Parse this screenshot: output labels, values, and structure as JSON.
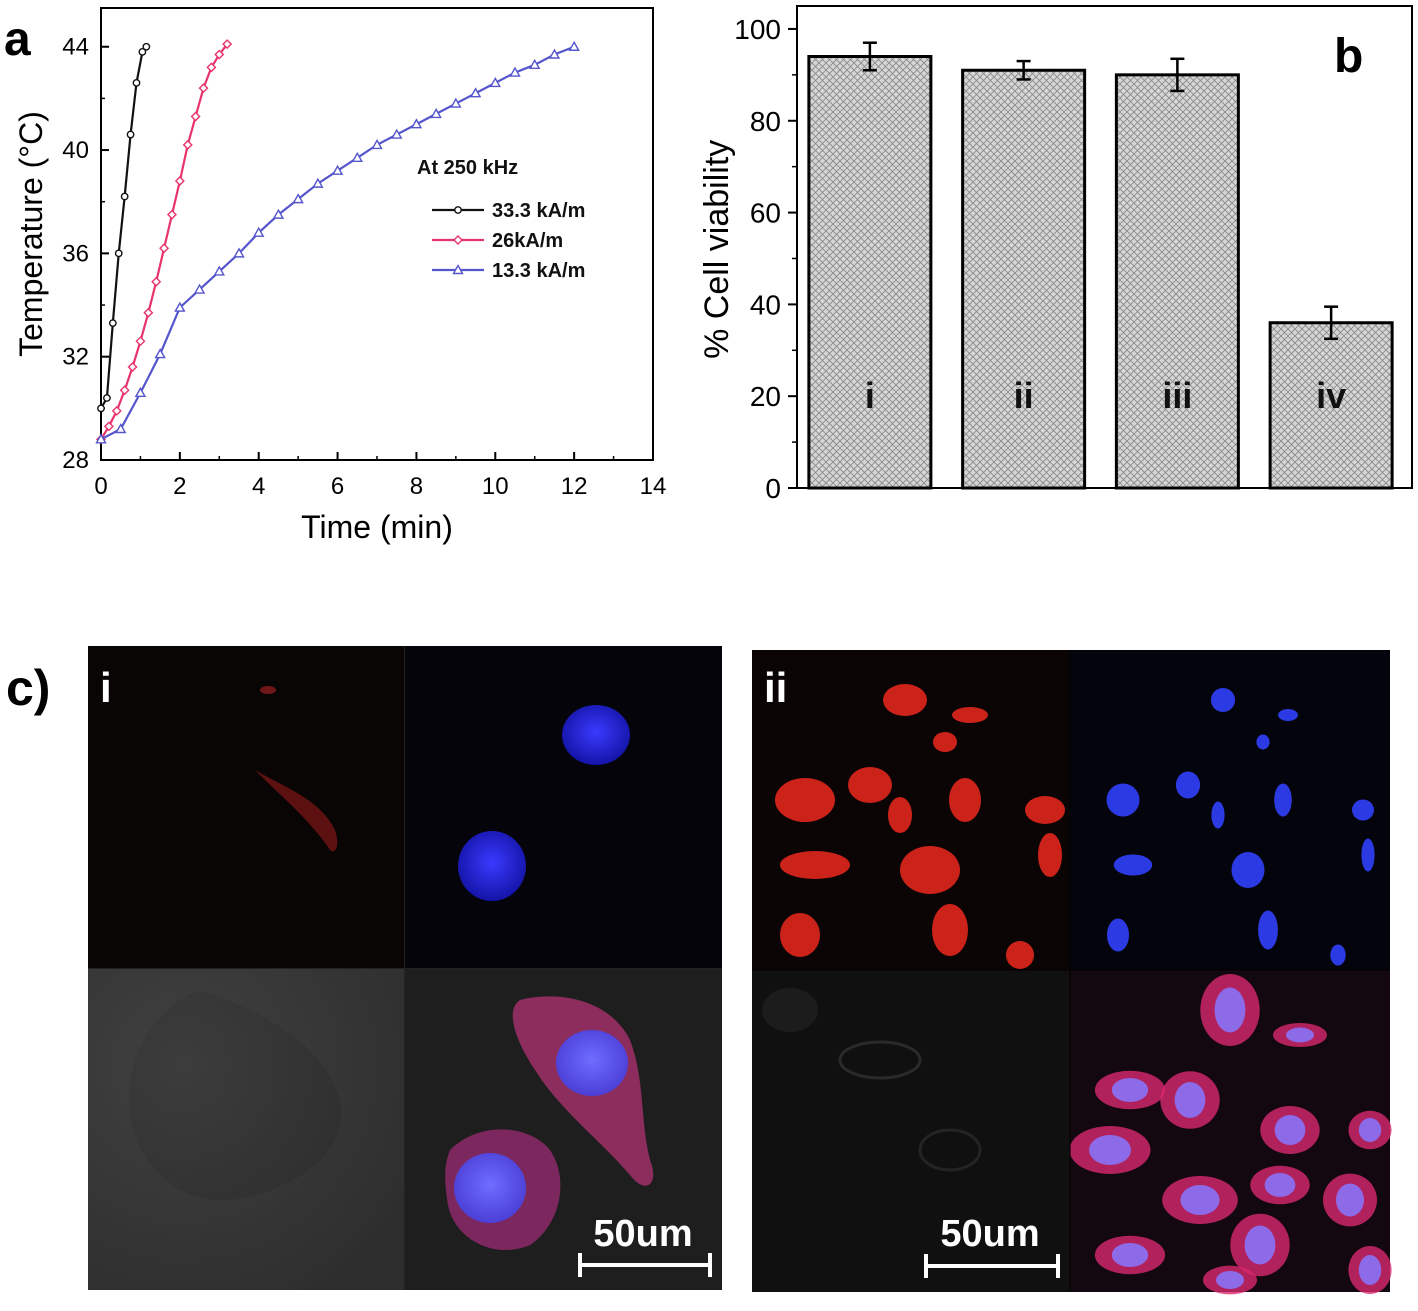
{
  "panels": {
    "a": {
      "label": "a"
    },
    "b": {
      "label": "b"
    },
    "c": {
      "label": "c)",
      "sub_i": "i",
      "sub_ii": "ii",
      "scale_i": "50um",
      "scale_ii": "50um"
    }
  },
  "chart_data": [
    {
      "type": "line",
      "xlabel": "Time (min)",
      "ylabel": "Temperature (°C)",
      "xlim": [
        0,
        14
      ],
      "ylim": [
        28,
        45.5
      ],
      "xticks": [
        0,
        2,
        4,
        6,
        8,
        10,
        12,
        14
      ],
      "yticks": [
        28,
        32,
        36,
        40,
        44
      ],
      "grid": false,
      "legend_title": "At 250 kHz",
      "legend_position": "center-right",
      "series": [
        {
          "name": "33.3 kA/m",
          "color": "#111111",
          "marker": "circle",
          "x": [
            0,
            0.15,
            0.3,
            0.45,
            0.6,
            0.75,
            0.9,
            1.05,
            1.15
          ],
          "y": [
            30.0,
            30.4,
            33.3,
            36.0,
            38.2,
            40.6,
            42.6,
            43.8,
            44.0
          ]
        },
        {
          "name": "26kA/m",
          "color": "#e8336b",
          "marker": "diamond",
          "x": [
            0,
            0.2,
            0.4,
            0.6,
            0.8,
            1.0,
            1.2,
            1.4,
            1.6,
            1.8,
            2.0,
            2.2,
            2.4,
            2.6,
            2.8,
            3.0,
            3.2
          ],
          "y": [
            28.8,
            29.3,
            29.9,
            30.7,
            31.6,
            32.6,
            33.7,
            34.9,
            36.2,
            37.5,
            38.8,
            40.2,
            41.3,
            42.4,
            43.2,
            43.7,
            44.1
          ]
        },
        {
          "name": "13.3 kA/m",
          "color": "#5555cc",
          "marker": "triangle",
          "x": [
            0,
            0.5,
            1.0,
            1.5,
            2.0,
            2.5,
            3.0,
            3.5,
            4.0,
            4.5,
            5.0,
            5.5,
            6.0,
            6.5,
            7.0,
            7.5,
            8.0,
            8.5,
            9.0,
            9.5,
            10.0,
            10.5,
            11.0,
            11.5,
            12.0
          ],
          "y": [
            28.8,
            29.2,
            30.6,
            32.1,
            33.9,
            34.6,
            35.3,
            36.0,
            36.8,
            37.5,
            38.1,
            38.7,
            39.2,
            39.7,
            40.2,
            40.6,
            41.0,
            41.4,
            41.8,
            42.2,
            42.6,
            43.0,
            43.3,
            43.7,
            44.0
          ]
        }
      ]
    },
    {
      "type": "bar",
      "ylabel": "% Cell viability",
      "ylim": [
        0,
        105
      ],
      "yticks": [
        0,
        20,
        40,
        60,
        80,
        100
      ],
      "fill": "crosshatch",
      "grid": false,
      "categories": [
        "i",
        "ii",
        "iii",
        "iv"
      ],
      "values": [
        94,
        91,
        90,
        36
      ],
      "errors": [
        3,
        2,
        3.5,
        3.5
      ]
    }
  ]
}
